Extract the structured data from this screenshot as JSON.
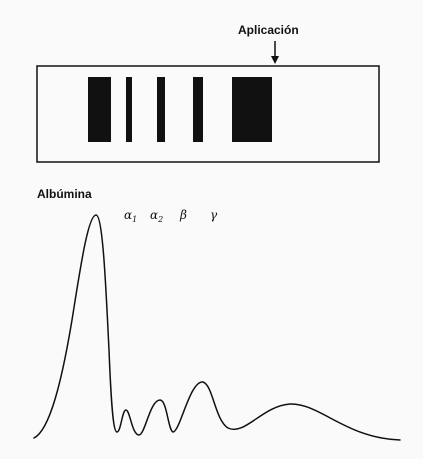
{
  "application": {
    "label": "Aplicación"
  },
  "gel": {
    "band_count": 5
  },
  "densitogram": {
    "albumin_label": "Albúmina",
    "fractions": [
      {
        "symbol": "α",
        "subscript": "1"
      },
      {
        "symbol": "α",
        "subscript": "2"
      },
      {
        "symbol": "β",
        "subscript": ""
      },
      {
        "symbol": "γ",
        "subscript": ""
      }
    ]
  },
  "colors": {
    "ink": "#111111",
    "paper": "#fafafa"
  }
}
